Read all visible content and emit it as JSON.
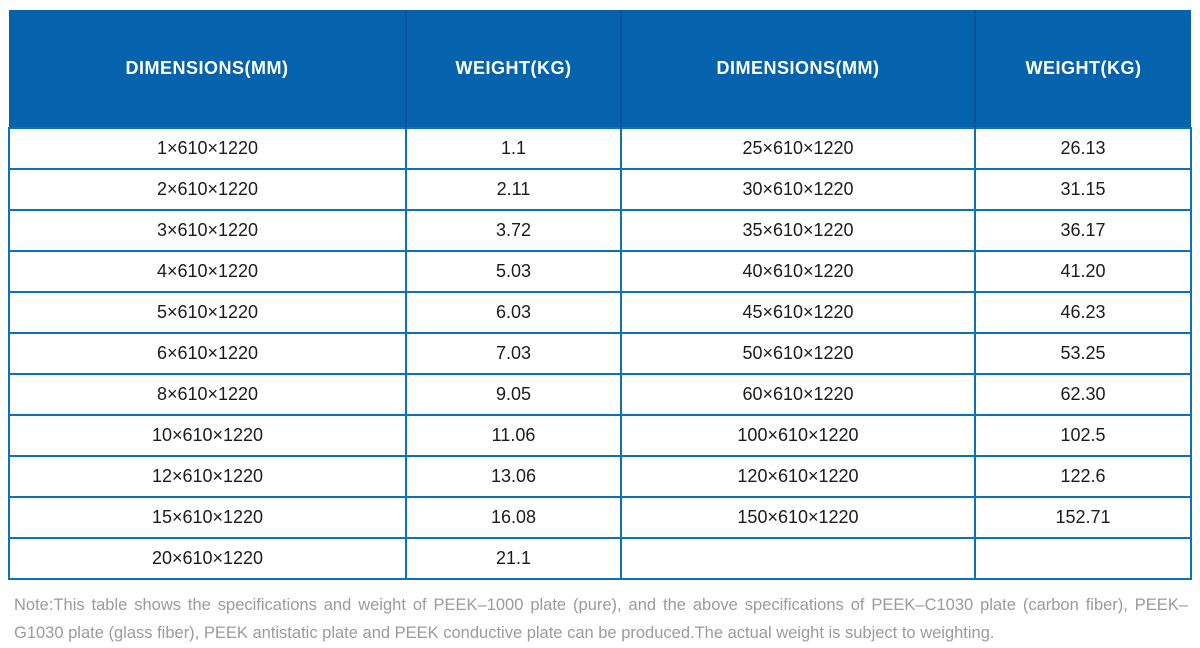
{
  "table": {
    "headers": [
      "DIMENSIONS(MM)",
      "WEIGHT(KG)",
      "DIMENSIONS(MM)",
      "WEIGHT(KG)"
    ],
    "rows": [
      [
        "1×610×1220",
        "1.1",
        "25×610×1220",
        "26.13"
      ],
      [
        "2×610×1220",
        "2.11",
        "30×610×1220",
        "31.15"
      ],
      [
        "3×610×1220",
        "3.72",
        "35×610×1220",
        "36.17"
      ],
      [
        "4×610×1220",
        "5.03",
        "40×610×1220",
        "41.20"
      ],
      [
        "5×610×1220",
        "6.03",
        "45×610×1220",
        "46.23"
      ],
      [
        "6×610×1220",
        "7.03",
        "50×610×1220",
        "53.25"
      ],
      [
        "8×610×1220",
        "9.05",
        "60×610×1220",
        "62.30"
      ],
      [
        "10×610×1220",
        "11.06",
        "100×610×1220",
        "102.5"
      ],
      [
        "12×610×1220",
        "13.06",
        "120×610×1220",
        "122.6"
      ],
      [
        "15×610×1220",
        "16.08",
        "150×610×1220",
        "152.71"
      ],
      [
        "20×610×1220",
        "21.1",
        "",
        ""
      ]
    ]
  },
  "note": {
    "text": "Note:This table shows the specifications and weight of PEEK–1000 plate (pure), and the above specifications of PEEK–C1030 plate (carbon fiber), PEEK–G1030 plate (glass fiber), PEEK antistatic plate and PEEK conductive plate can be produced.The actual weight is subject to weighting."
  },
  "colors": {
    "header_bg": "#0563ad",
    "header_divider": "#07559e",
    "header_text": "#ffffff",
    "border": "#0c70ba",
    "cell_text": "#1b1b1b",
    "note_text": "#9b9b9b"
  }
}
